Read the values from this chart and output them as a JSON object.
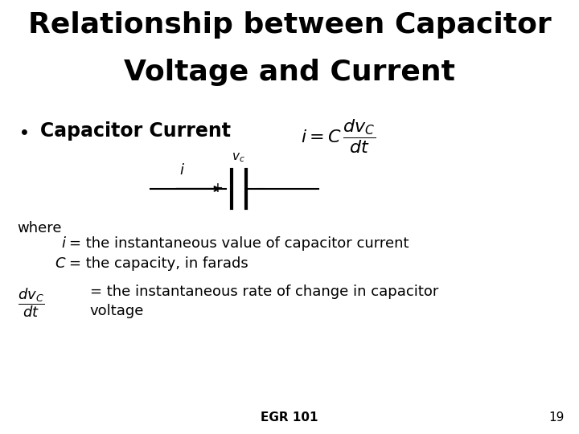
{
  "title_line1": "Relationship between Capacitor",
  "title_line2": "Voltage and Current",
  "bg_color": "#ffffff",
  "text_color": "#000000",
  "footer_text": "EGR 101",
  "page_num": "19",
  "title_fontsize": 26,
  "bullet_fontsize": 17,
  "body_fontsize": 13,
  "footer_fontsize": 11
}
